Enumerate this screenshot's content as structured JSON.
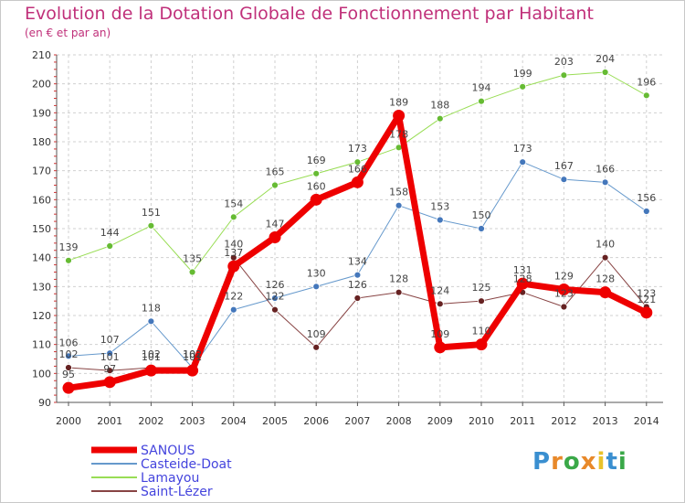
{
  "title": "Evolution de la Dotation Globale de Fonctionnement par Habitant",
  "subtitle": "(en € et par an)",
  "logo": {
    "text": "Proxiti",
    "letters": [
      "P",
      "r",
      "o",
      "x",
      "i",
      "t",
      "i"
    ],
    "colors": [
      "#3a8fd0",
      "#e8892a",
      "#3aa848",
      "#e8892a",
      "#e8c22a",
      "#3a8fd0",
      "#3aa848"
    ]
  },
  "chart_data": {
    "type": "line",
    "title": "Evolution de la Dotation Globale de Fonctionnement par Habitant",
    "subtitle": "(en € et par an)",
    "xlabel": "",
    "ylabel": "",
    "x": [
      "2000",
      "2001",
      "2002",
      "2003",
      "2004",
      "2005",
      "2006",
      "2007",
      "2008",
      "2009",
      "2010",
      "2011",
      "2012",
      "2013",
      "2014"
    ],
    "ylim": [
      90,
      210
    ],
    "yticks": [
      90,
      100,
      110,
      120,
      130,
      140,
      150,
      160,
      170,
      180,
      190,
      200,
      210
    ],
    "legend_position": "bottom-left",
    "series": [
      {
        "name": "Lamayou",
        "color": "#99dd55",
        "marker": "#66bb33",
        "width": 1,
        "values": [
          139,
          144,
          151,
          135,
          154,
          165,
          169,
          173,
          178,
          188,
          194,
          199,
          203,
          204,
          196
        ],
        "labels": [
          "139",
          "144",
          "151",
          "135",
          "154",
          "165",
          "169",
          "173",
          "178",
          "188",
          "194",
          "199",
          "203",
          "204",
          "196"
        ]
      },
      {
        "name": "Casteide-Doat",
        "color": "#6699cc",
        "marker": "#4477bb",
        "width": 1,
        "values": [
          106,
          107,
          118,
          102,
          122,
          126,
          130,
          134,
          158,
          153,
          150,
          173,
          167,
          166,
          156
        ],
        "labels": [
          "106",
          "107",
          "118",
          "102",
          "122",
          "126",
          "130",
          "134",
          "158",
          "153",
          "150",
          "173",
          "167",
          "166",
          "156"
        ]
      },
      {
        "name": "Saint-Lézer",
        "color": "#884444",
        "marker": "#662222",
        "width": 1,
        "values": [
          102,
          101,
          102,
          102,
          140,
          122,
          109,
          126,
          128,
          124,
          125,
          128,
          123,
          140,
          123
        ],
        "labels": [
          "102",
          "101",
          "102",
          "102",
          "140",
          "122",
          "109",
          "126",
          "128",
          "124",
          "125",
          "128",
          "123",
          "140",
          "123"
        ]
      },
      {
        "name": "SANOUS",
        "color": "#ee0000",
        "marker": "#ee0000",
        "width": 7,
        "values": [
          95,
          97,
          101,
          101,
          137,
          147,
          160,
          166,
          189,
          109,
          110,
          131,
          129,
          128,
          121
        ],
        "labels": [
          "95",
          "97",
          "101",
          "101",
          "137",
          "147",
          "160",
          "166",
          "189",
          "109",
          "110",
          "131",
          "129",
          "128",
          "121"
        ]
      }
    ],
    "legend": [
      {
        "name": "SANOUS",
        "color": "#ee0000",
        "text_color": "#4444dd",
        "width": 7
      },
      {
        "name": "Casteide-Doat",
        "color": "#6699cc",
        "text_color": "#4444dd",
        "width": 2
      },
      {
        "name": "Lamayou",
        "color": "#99dd55",
        "text_color": "#4444dd",
        "width": 2
      },
      {
        "name": "Saint-Lézer",
        "color": "#884444",
        "text_color": "#4444dd",
        "width": 2
      }
    ]
  }
}
